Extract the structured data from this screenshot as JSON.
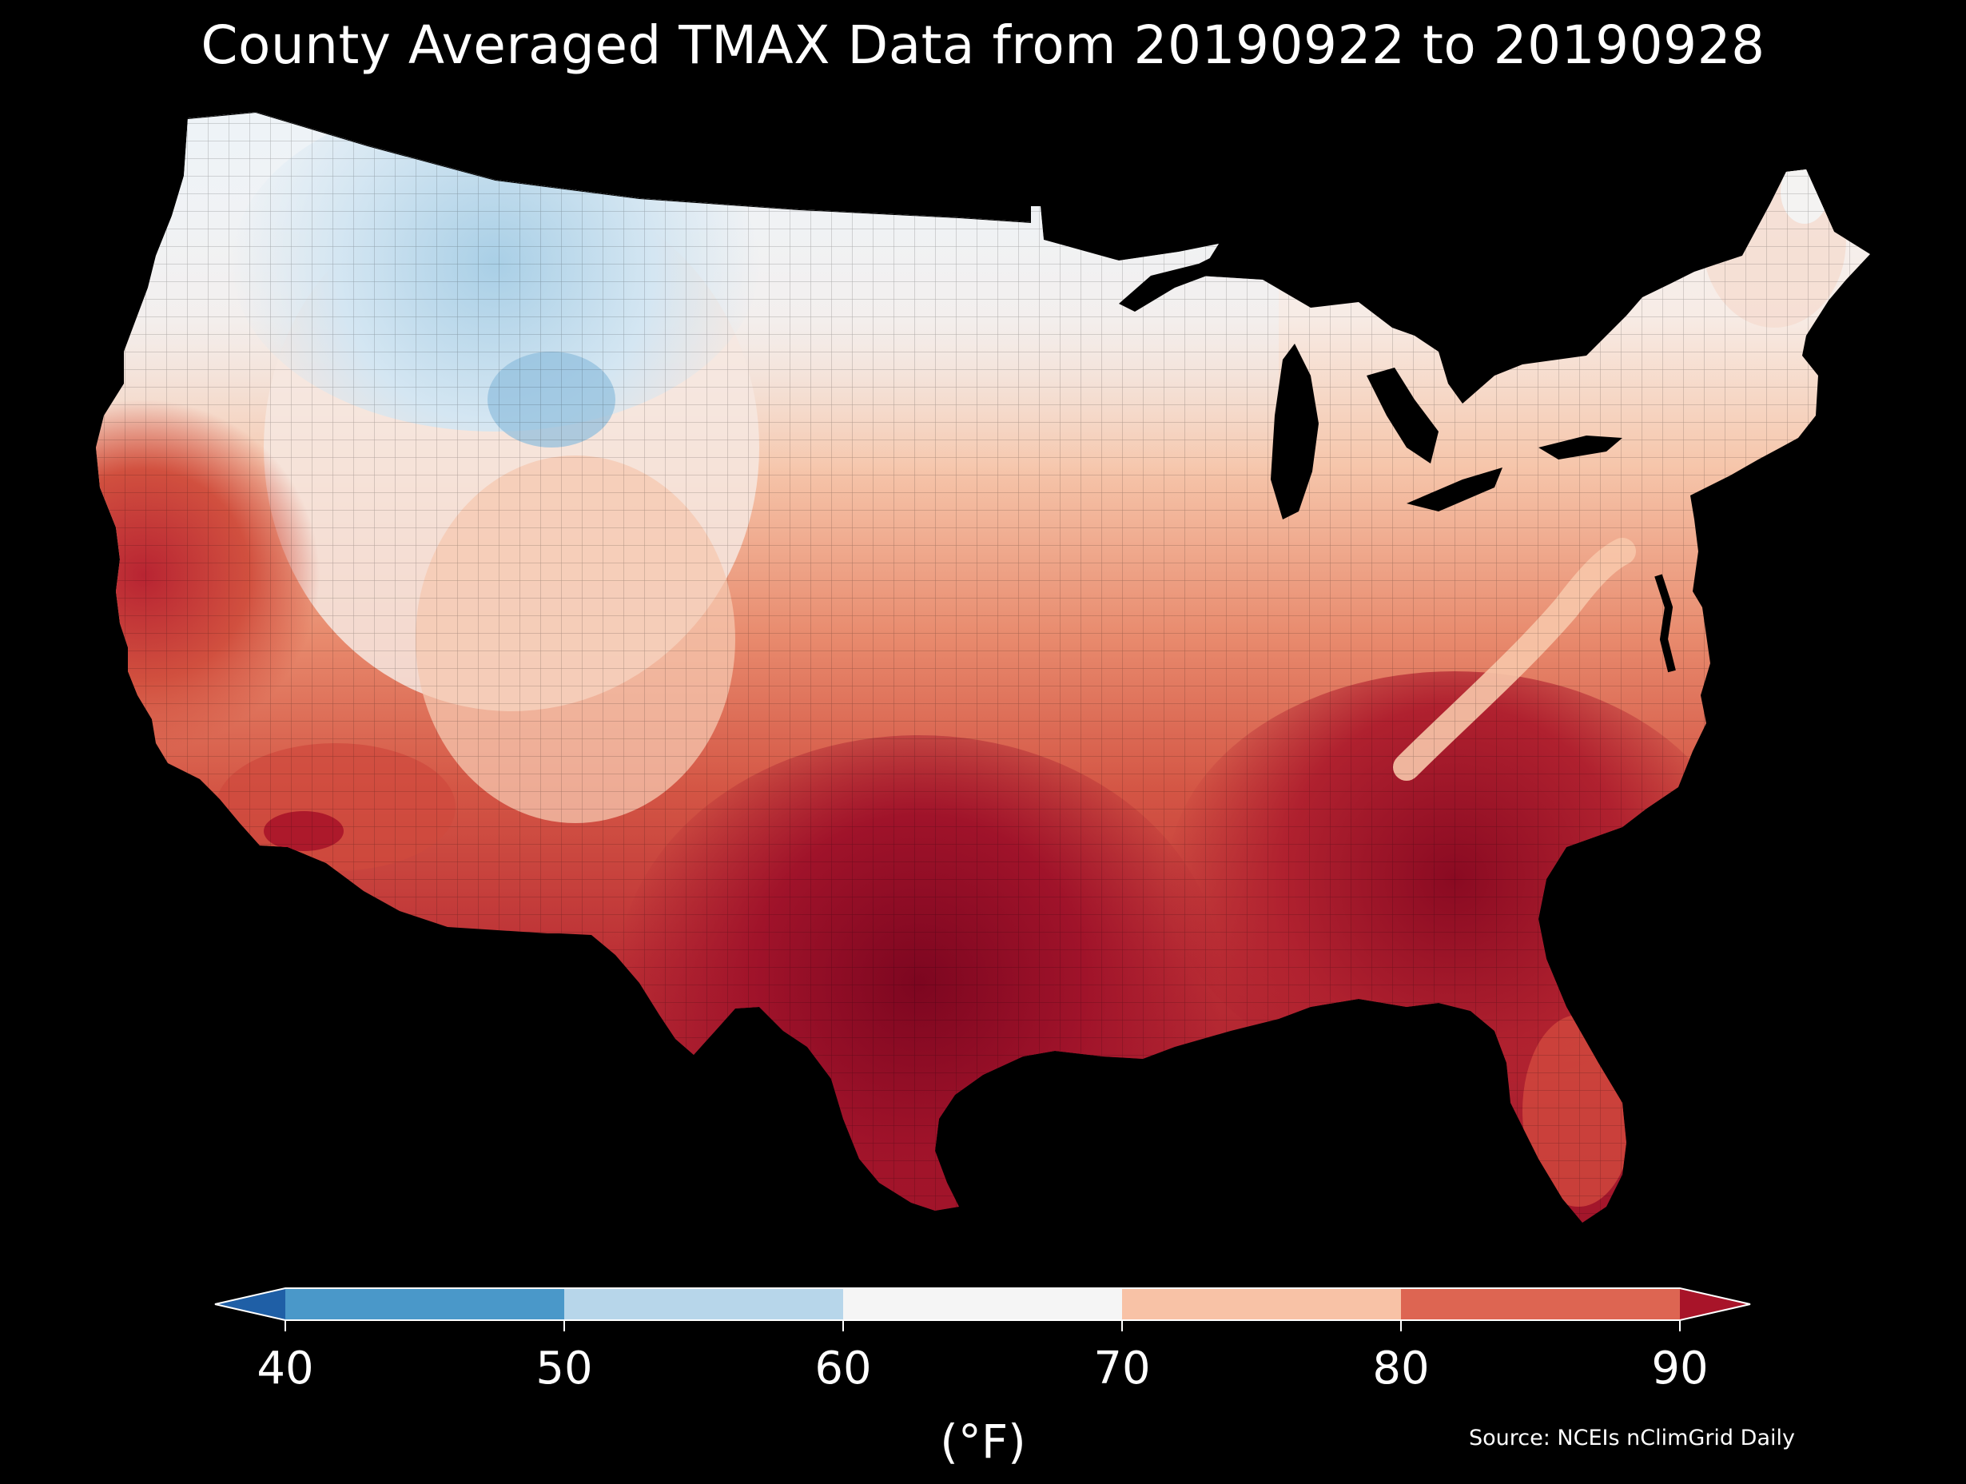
{
  "title": "County Averaged TMAX Data from 20190922 to 20190928",
  "source": "Source: NCEIs nClimGrid Daily",
  "colorbar": {
    "label": "(°F)",
    "ticks": [
      "40",
      "50",
      "60",
      "70",
      "80",
      "90"
    ],
    "bins": [
      {
        "from": 40,
        "to": 50,
        "color": "#4a98c9"
      },
      {
        "from": 50,
        "to": 60,
        "color": "#b7d6ea"
      },
      {
        "from": 60,
        "to": 70,
        "color": "#f5f5f5"
      },
      {
        "from": 70,
        "to": 80,
        "color": "#f8c2a6"
      },
      {
        "from": 80,
        "to": 90,
        "color": "#dd6552"
      }
    ],
    "under_color": "#1f5fa6",
    "over_color": "#a81429"
  },
  "map": {
    "region": "Contiguous United States",
    "unit": "county",
    "variable": "TMAX",
    "palette": [
      "#cfe3f1",
      "#eef3f7",
      "#f6e6df",
      "#f8c2a6",
      "#ee9a7c",
      "#dd6552",
      "#c23a37",
      "#9b1027",
      "#80081f"
    ]
  }
}
